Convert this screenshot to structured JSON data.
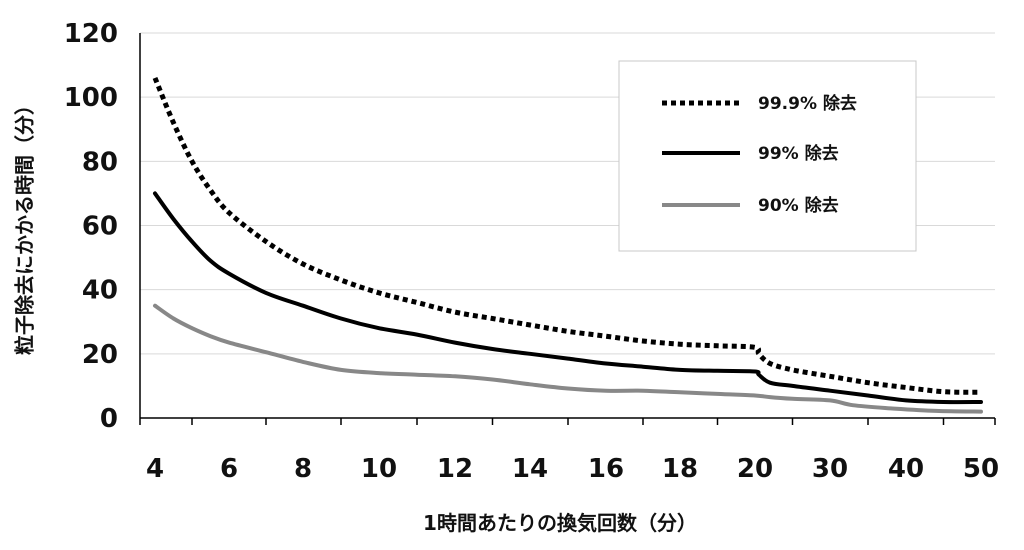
{
  "chart_data": {
    "type": "line",
    "xlabel": "1時間あたりの換気回数（分）",
    "ylabel": "粒子除去にかかる時間（分）",
    "ylim": [
      0,
      120
    ],
    "yticks": [
      "0",
      "20",
      "40",
      "60",
      "80",
      "100",
      "120"
    ],
    "categories": [
      "4",
      "6",
      "8",
      "10",
      "12",
      "14",
      "16",
      "18",
      "20",
      "30",
      "40",
      "50"
    ],
    "grid": true,
    "legend_position": "top-right",
    "series": [
      {
        "name": "99.9% 除去",
        "style": "dotted",
        "color": "#000000",
        "points": [
          {
            "x": 4,
            "y": 106
          },
          {
            "x": 4.5,
            "y": 92
          },
          {
            "x": 5,
            "y": 80
          },
          {
            "x": 5.5,
            "y": 71
          },
          {
            "x": 6,
            "y": 64
          },
          {
            "x": 7,
            "y": 55
          },
          {
            "x": 8,
            "y": 48
          },
          {
            "x": 9,
            "y": 43
          },
          {
            "x": 10,
            "y": 39
          },
          {
            "x": 11,
            "y": 36
          },
          {
            "x": 12,
            "y": 33
          },
          {
            "x": 13,
            "y": 31
          },
          {
            "x": 14,
            "y": 29
          },
          {
            "x": 15,
            "y": 27
          },
          {
            "x": 16,
            "y": 25.5
          },
          {
            "x": 17,
            "y": 24
          },
          {
            "x": 18,
            "y": 23
          },
          {
            "x": 19,
            "y": 22.5
          },
          {
            "x": 20,
            "y": 22
          },
          {
            "x": 20.5,
            "y": 20
          },
          {
            "x": 22,
            "y": 17
          },
          {
            "x": 25,
            "y": 15
          },
          {
            "x": 30,
            "y": 13
          },
          {
            "x": 35,
            "y": 11
          },
          {
            "x": 40,
            "y": 9.5
          },
          {
            "x": 45,
            "y": 8.2
          },
          {
            "x": 50,
            "y": 8
          }
        ]
      },
      {
        "name": "99% 除去",
        "style": "solid",
        "color": "#000000",
        "points": [
          {
            "x": 4,
            "y": 70
          },
          {
            "x": 4.5,
            "y": 62
          },
          {
            "x": 5,
            "y": 55
          },
          {
            "x": 5.5,
            "y": 49
          },
          {
            "x": 6,
            "y": 45
          },
          {
            "x": 7,
            "y": 39
          },
          {
            "x": 8,
            "y": 35
          },
          {
            "x": 9,
            "y": 31
          },
          {
            "x": 10,
            "y": 28
          },
          {
            "x": 11,
            "y": 26
          },
          {
            "x": 12,
            "y": 23.5
          },
          {
            "x": 13,
            "y": 21.5
          },
          {
            "x": 14,
            "y": 20
          },
          {
            "x": 15,
            "y": 18.5
          },
          {
            "x": 16,
            "y": 17
          },
          {
            "x": 17,
            "y": 16
          },
          {
            "x": 18,
            "y": 15
          },
          {
            "x": 19,
            "y": 14.7
          },
          {
            "x": 20,
            "y": 14.5
          },
          {
            "x": 20.5,
            "y": 13.5
          },
          {
            "x": 22,
            "y": 11
          },
          {
            "x": 25,
            "y": 10
          },
          {
            "x": 30,
            "y": 8.5
          },
          {
            "x": 35,
            "y": 7
          },
          {
            "x": 40,
            "y": 5.5
          },
          {
            "x": 45,
            "y": 5
          },
          {
            "x": 50,
            "y": 5
          }
        ]
      },
      {
        "name": "90% 除去",
        "style": "solid",
        "color": "#888888",
        "points": [
          {
            "x": 4,
            "y": 35
          },
          {
            "x": 4.5,
            "y": 31
          },
          {
            "x": 5,
            "y": 28
          },
          {
            "x": 5.5,
            "y": 25.5
          },
          {
            "x": 6,
            "y": 23.5
          },
          {
            "x": 7,
            "y": 20.5
          },
          {
            "x": 8,
            "y": 17.5
          },
          {
            "x": 9,
            "y": 15
          },
          {
            "x": 10,
            "y": 14
          },
          {
            "x": 11,
            "y": 13.5
          },
          {
            "x": 12,
            "y": 13
          },
          {
            "x": 13,
            "y": 12
          },
          {
            "x": 14,
            "y": 10.5
          },
          {
            "x": 15,
            "y": 9.2
          },
          {
            "x": 16,
            "y": 8.5
          },
          {
            "x": 17,
            "y": 8.5
          },
          {
            "x": 18,
            "y": 8
          },
          {
            "x": 19,
            "y": 7.5
          },
          {
            "x": 20,
            "y": 7
          },
          {
            "x": 22,
            "y": 6.5
          },
          {
            "x": 25,
            "y": 6
          },
          {
            "x": 30,
            "y": 5.5
          },
          {
            "x": 33,
            "y": 4
          },
          {
            "x": 38,
            "y": 3
          },
          {
            "x": 44,
            "y": 2.2
          },
          {
            "x": 50,
            "y": 2
          }
        ]
      }
    ]
  }
}
